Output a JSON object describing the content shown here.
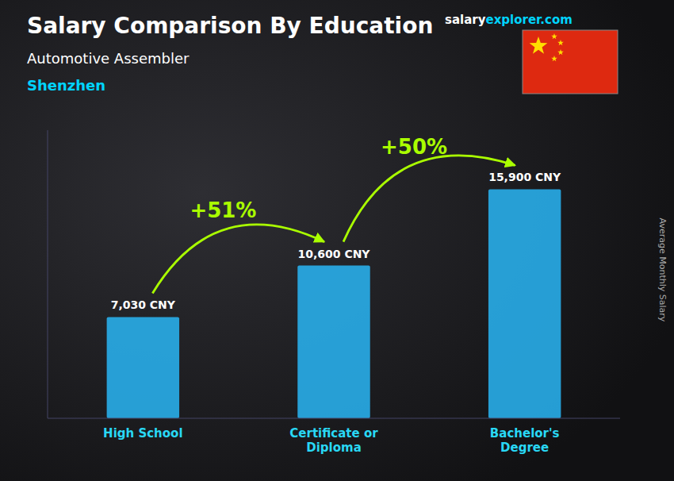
{
  "chart_data": {
    "type": "bar",
    "title": "Salary Comparison By Education",
    "subtitle": [
      "Automotive Assembler",
      "Shenzhen"
    ],
    "source": [
      "salary",
      "explorer.com"
    ],
    "y_label": "Average Monthly Salary",
    "categories": [
      "High School",
      "Certificate or\nDiploma",
      "Bachelor's\nDegree"
    ],
    "values": [
      7030,
      10600,
      15900
    ],
    "value_labels": [
      "7,030 CNY",
      "10,600 CNY",
      "15,900 CNY"
    ],
    "annotations": [
      "+51%",
      "+50%"
    ],
    "color": "#29b6f6",
    "ylim": [
      0,
      20000
    ],
    "grid": false,
    "data_labels": true,
    "tick_labels": "x"
  }
}
